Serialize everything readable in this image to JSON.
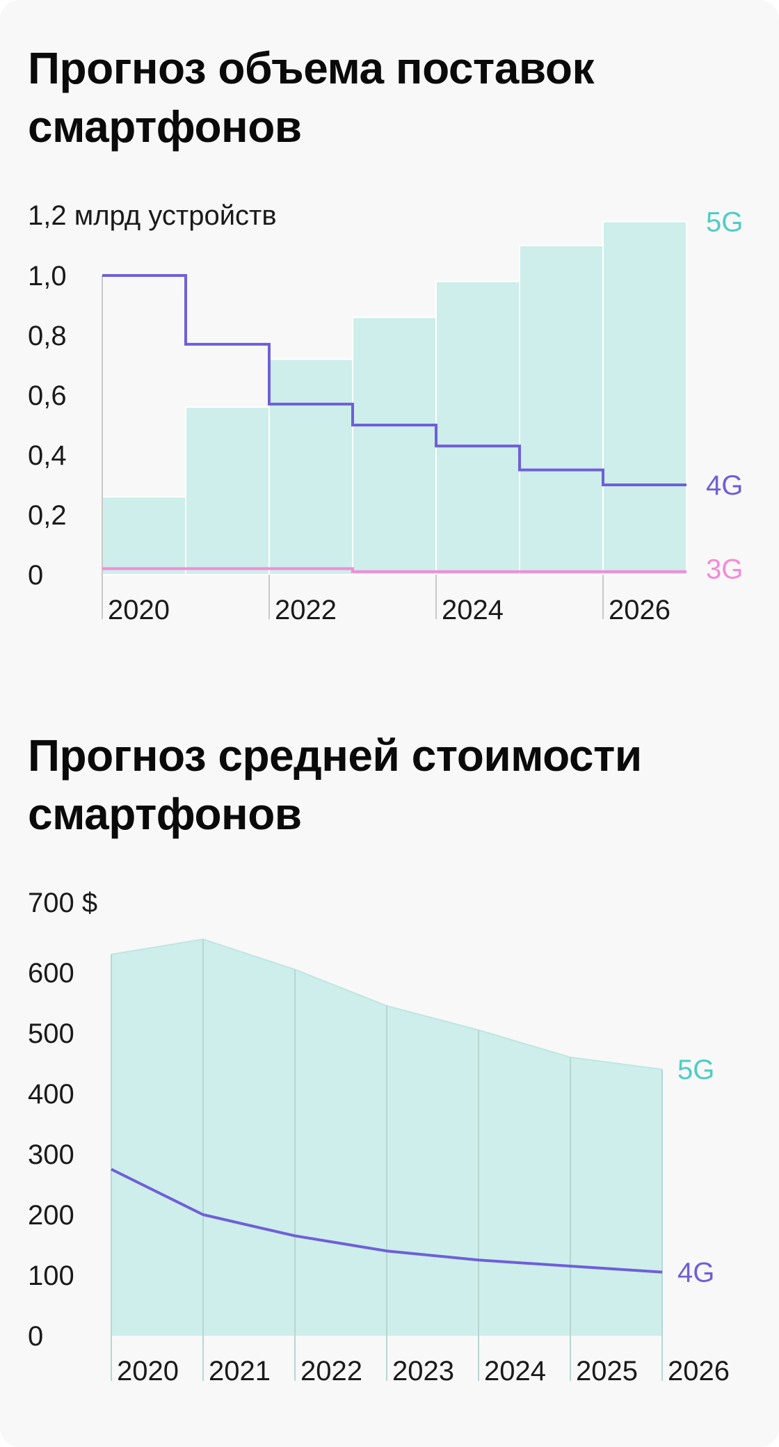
{
  "colors": {
    "five_g": "#4ecdc4",
    "five_g_fill": "#cdeeea",
    "four_g": "#6f5fd8",
    "three_g": "#f58ad8",
    "axis": "#c8c8c8"
  },
  "chart_data": [
    {
      "type": "bar",
      "title": "Прогноз объема поставок\nсмартфонов",
      "unit_label": "1,2 млрд устройств",
      "x": [
        2020,
        2021,
        2022,
        2023,
        2024,
        2025,
        2026
      ],
      "x_tick_labels": [
        "2020",
        "2022",
        "2024",
        "2026"
      ],
      "y_tick_labels": [
        "1,0",
        "0,8",
        "0,6",
        "0,4",
        "0,2",
        "0"
      ],
      "ylim": [
        0,
        1.2
      ],
      "series": [
        {
          "name": "5G",
          "style": "bar",
          "values": [
            0.26,
            0.56,
            0.72,
            0.86,
            0.98,
            1.1,
            1.18
          ]
        },
        {
          "name": "4G",
          "style": "step",
          "values": [
            1.0,
            0.77,
            0.57,
            0.5,
            0.43,
            0.35,
            0.3
          ]
        },
        {
          "name": "3G",
          "style": "step",
          "values": [
            0.02,
            0.02,
            0.02,
            0.01,
            0.01,
            0.01,
            0.01
          ]
        }
      ]
    },
    {
      "type": "area",
      "title": "Прогноз средней стоимости\nсмартфонов",
      "unit_label": "700 $",
      "x": [
        2020,
        2021,
        2022,
        2023,
        2024,
        2025,
        2026
      ],
      "x_tick_labels": [
        "2020",
        "2021",
        "2022",
        "2023",
        "2024",
        "2025",
        "2026"
      ],
      "y_tick_labels": [
        "600",
        "500",
        "400",
        "300",
        "200",
        "100",
        "0"
      ],
      "ylim": [
        0,
        700
      ],
      "series": [
        {
          "name": "5G",
          "style": "area",
          "values": [
            630,
            655,
            605,
            545,
            505,
            460,
            440
          ]
        },
        {
          "name": "4G",
          "style": "line",
          "values": [
            275,
            200,
            165,
            140,
            125,
            115,
            105
          ]
        }
      ]
    }
  ]
}
